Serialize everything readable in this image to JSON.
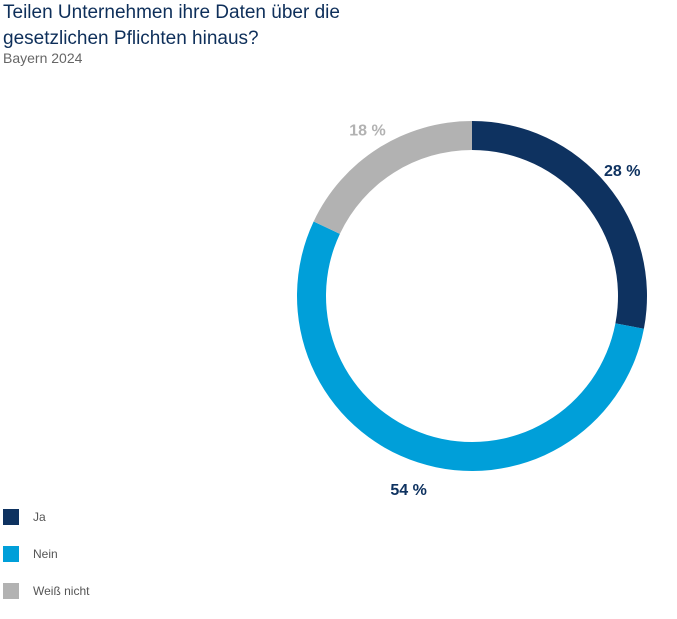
{
  "title": "Teilen Unternehmen ihre Daten über die gesetzlichen Pflichten hinaus?",
  "subtitle": "Bayern 2024",
  "chart_data": {
    "type": "pie",
    "donut": true,
    "title": "Teilen Unternehmen ihre Daten über die gesetzlichen Pflichten hinaus?",
    "subtitle": "Bayern 2024",
    "unit": "%",
    "categories": [
      "Ja",
      "Nein",
      "Weiß nicht"
    ],
    "values": [
      28,
      54,
      18
    ],
    "labels": [
      "28 %",
      "54 %",
      "18 %"
    ],
    "colors": [
      "#0e3260",
      "#009fd9",
      "#b2b2b2"
    ],
    "label_colors": [
      "#0e3260",
      "#0e3260",
      "#b2b2b2"
    ],
    "legend_position": "bottom-left"
  },
  "legend": [
    {
      "label": "Ja",
      "color": "#0e3260"
    },
    {
      "label": "Nein",
      "color": "#009fd9"
    },
    {
      "label": "Weiß nicht",
      "color": "#b2b2b2"
    }
  ]
}
